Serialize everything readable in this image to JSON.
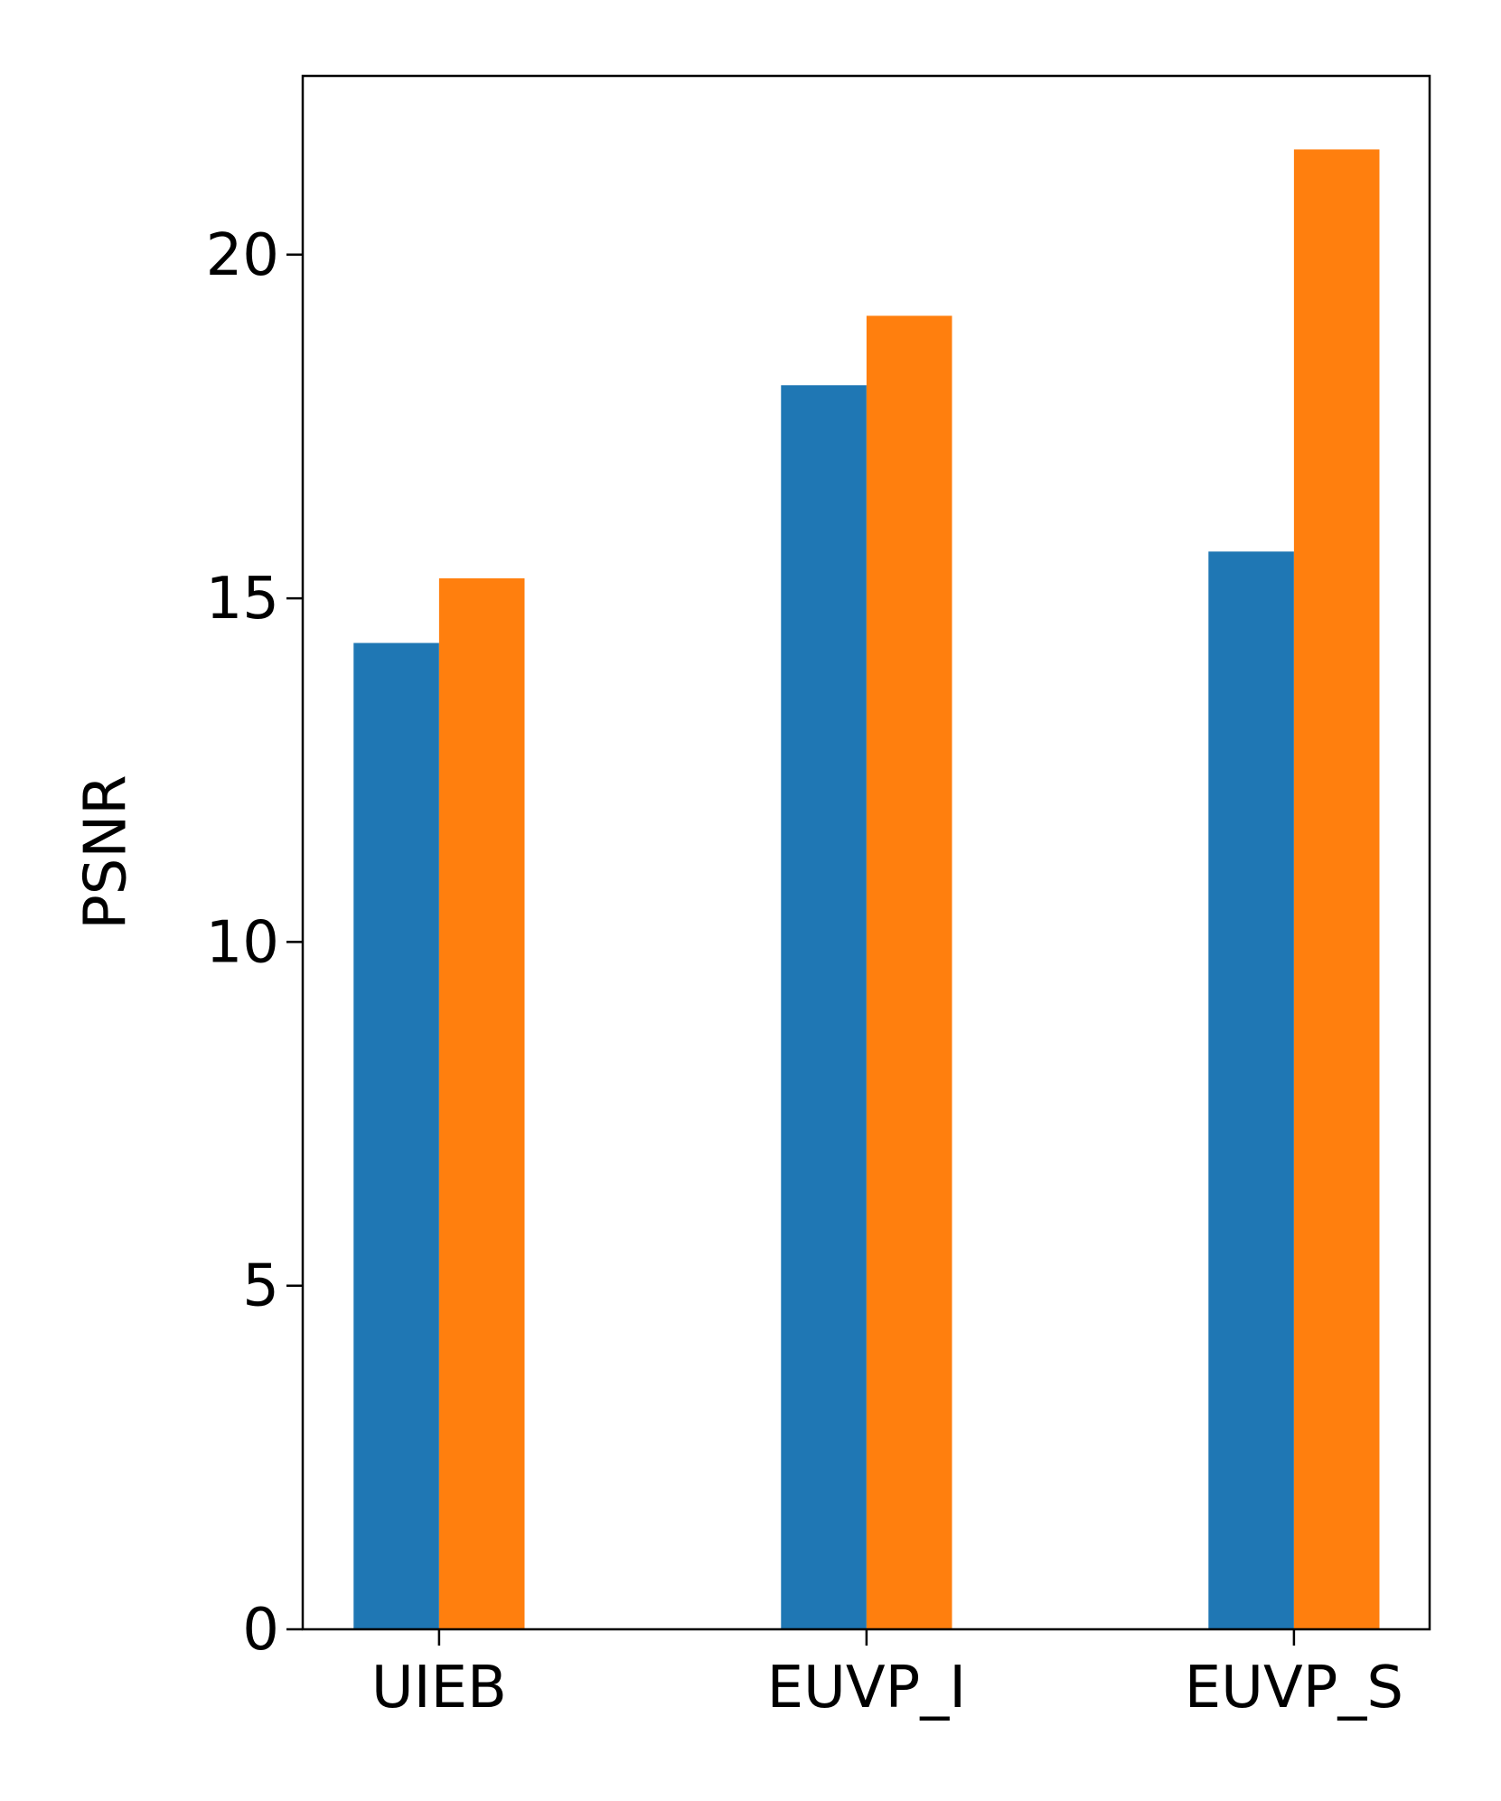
{
  "chart_data": {
    "type": "bar",
    "y_label": "PSNR",
    "categories": [
      "UIEB",
      "EUVP_I",
      "EUVP_S"
    ],
    "series": [
      {
        "color": "#1f77b4",
        "values": [
          14.35,
          18.1,
          15.68
        ]
      },
      {
        "color": "#ff7f0e",
        "values": [
          15.29,
          19.11,
          21.53
        ]
      }
    ],
    "ylim": [
      0,
      22.6
    ],
    "yticks": [
      0,
      5,
      10,
      15,
      20
    ],
    "grid": false
  }
}
